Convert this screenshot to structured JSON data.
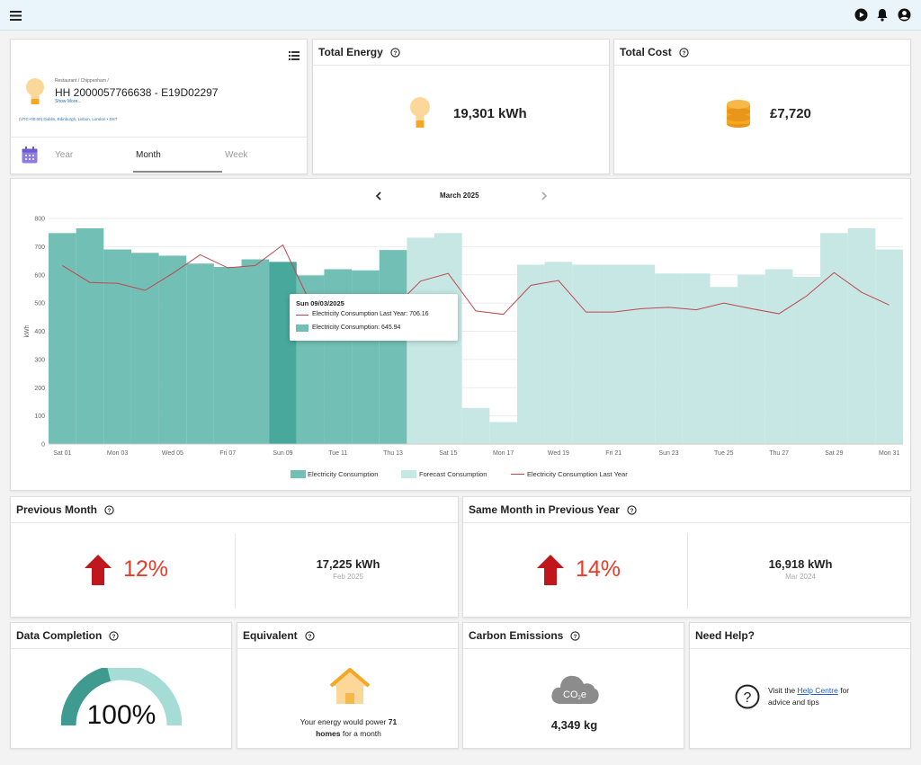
{
  "meter": {
    "breadcrumb": "Restaurant / Chippenham /",
    "name": "HH 2000057766638 - E19D02297",
    "show_more": "Show More...",
    "timezone": "(UTC+00:00) Dublin, Edinburgh, Lisbon, London • DST"
  },
  "tabs": [
    {
      "label": "Year",
      "active": false
    },
    {
      "label": "Month",
      "active": true
    },
    {
      "label": "Week",
      "active": false
    }
  ],
  "total_energy": {
    "title": "Total Energy",
    "value": "19,301 kWh"
  },
  "total_cost": {
    "title": "Total Cost",
    "value": "£7,720"
  },
  "chart_nav": {
    "period": "March 2025"
  },
  "tooltip": {
    "date": "Sun 09/03/2025",
    "line1": "Electricity Consumption Last Year: 706.16",
    "line2": "Electricity Consumption: 645.94"
  },
  "chart_data": {
    "type": "bar",
    "ylabel": "kWh",
    "ylim": [
      0,
      800
    ],
    "yticks": [
      0,
      100,
      200,
      300,
      400,
      500,
      600,
      700,
      800
    ],
    "x_tick_labels": [
      "Sat 01",
      "Mon 03",
      "Wed 05",
      "Fri 07",
      "Sun 09",
      "Tue 11",
      "Thu 13",
      "Sat 15",
      "Mon 17",
      "Wed 19",
      "Fri 21",
      "Sun 23",
      "Tue 25",
      "Thu 27",
      "Sat 29",
      "Mon 31"
    ],
    "days": [
      1,
      2,
      3,
      4,
      5,
      6,
      7,
      8,
      9,
      10,
      11,
      12,
      13,
      14,
      15,
      16,
      17,
      18,
      19,
      20,
      21,
      22,
      23,
      24,
      25,
      26,
      27,
      28,
      29,
      30,
      31
    ],
    "series": [
      {
        "name": "Electricity Consumption",
        "kind": "bar",
        "color": "#72bfb5",
        "values": [
          748,
          765,
          690,
          678,
          668,
          640,
          628,
          655,
          646,
          598,
          620,
          616,
          688,
          null,
          null,
          null,
          null,
          null,
          null,
          null,
          null,
          null,
          null,
          null,
          null,
          null,
          null,
          null,
          null,
          null,
          null
        ]
      },
      {
        "name": "Forecast Consumption",
        "kind": "bar",
        "color": "#c6e7e3",
        "values": [
          null,
          null,
          null,
          null,
          null,
          null,
          null,
          null,
          null,
          null,
          null,
          null,
          null,
          732,
          748,
          128,
          78,
          636,
          646,
          636,
          636,
          636,
          605,
          605,
          557,
          600,
          620,
          593,
          748,
          765,
          690
        ]
      },
      {
        "name": "Electricity Consumption Last Year",
        "kind": "line",
        "color": "#c0474f",
        "values": [
          633,
          573,
          570,
          545,
          605,
          671,
          625,
          633,
          706,
          500,
          490,
          480,
          480,
          578,
          605,
          472,
          460,
          563,
          580,
          468,
          468,
          480,
          485,
          476,
          500,
          480,
          462,
          525,
          608,
          538,
          493
        ]
      }
    ],
    "highlight_day": 9,
    "legend_position": "bottom"
  },
  "previous_month": {
    "title": "Previous Month",
    "percent": "12%",
    "value": "17,225 kWh",
    "period": "Feb 2025"
  },
  "same_month": {
    "title": "Same Month in Previous Year",
    "percent": "14%",
    "value": "16,918 kWh",
    "period": "Mar 2024"
  },
  "data_completion": {
    "title": "Data Completion",
    "value": "100%"
  },
  "equivalent": {
    "title": "Equivalent",
    "text_a": "Your energy would power",
    "homes": "71",
    "text_b": "homes",
    "text_c": "for a month"
  },
  "carbon": {
    "title": "Carbon Emissions",
    "value": "4,349 kg"
  },
  "help": {
    "title": "Need Help?",
    "text_a": "Visit the",
    "link": "Help Centre",
    "text_b": "for",
    "text_c": "advice and tips"
  },
  "colors": {
    "accent": "#3f9a8f",
    "increase": "#e53d2a",
    "arrow": "#c0171d",
    "icon_orange": "#f5a623"
  }
}
